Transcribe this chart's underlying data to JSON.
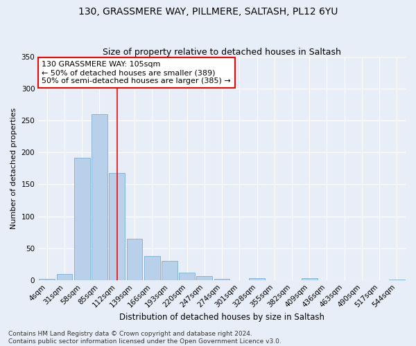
{
  "title": "130, GRASSMERE WAY, PILLMERE, SALTASH, PL12 6YU",
  "subtitle": "Size of property relative to detached houses in Saltash",
  "xlabel": "Distribution of detached houses by size in Saltash",
  "ylabel": "Number of detached properties",
  "categories": [
    "4sqm",
    "31sqm",
    "58sqm",
    "85sqm",
    "112sqm",
    "139sqm",
    "166sqm",
    "193sqm",
    "220sqm",
    "247sqm",
    "274sqm",
    "301sqm",
    "328sqm",
    "355sqm",
    "382sqm",
    "409sqm",
    "436sqm",
    "463sqm",
    "490sqm",
    "517sqm",
    "544sqm"
  ],
  "values": [
    2,
    10,
    192,
    260,
    168,
    65,
    38,
    30,
    12,
    6,
    2,
    0,
    3,
    0,
    0,
    3,
    0,
    0,
    0,
    0,
    1
  ],
  "bar_color": "#b8d0ea",
  "bar_edge_color": "#7aafd4",
  "bg_color": "#e8eef7",
  "grid_color": "#ffffff",
  "vline_x": 4,
  "vline_color": "red",
  "annotation_text": "130 GRASSMERE WAY: 105sqm\n← 50% of detached houses are smaller (389)\n50% of semi-detached houses are larger (385) →",
  "annotation_box_color": "#ffffff",
  "annotation_box_edge_color": "red",
  "footnote": "Contains HM Land Registry data © Crown copyright and database right 2024.\nContains public sector information licensed under the Open Government Licence v3.0.",
  "ylim": [
    0,
    350
  ],
  "yticks": [
    0,
    50,
    100,
    150,
    200,
    250,
    300,
    350
  ],
  "title_fontsize": 10,
  "subtitle_fontsize": 9,
  "xlabel_fontsize": 8.5,
  "ylabel_fontsize": 8,
  "tick_fontsize": 7.5,
  "annotation_fontsize": 8,
  "footnote_fontsize": 6.5
}
